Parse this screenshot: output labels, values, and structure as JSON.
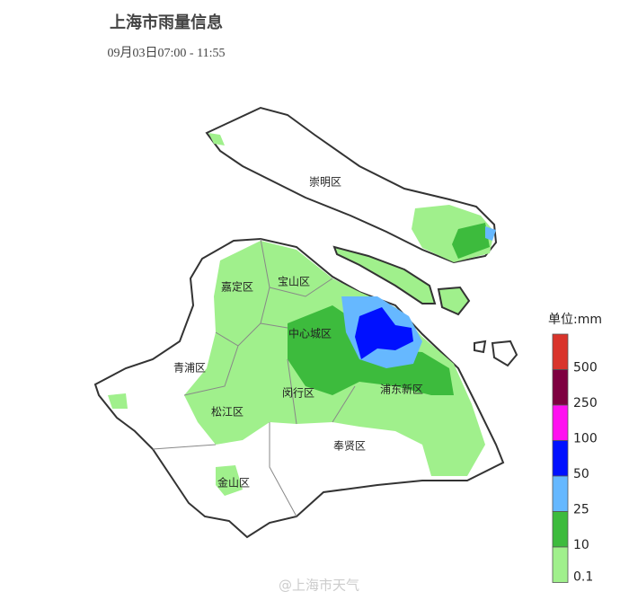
{
  "header": {
    "title": "上海市雨量信息",
    "subtitle": "09月03日07:00 - 11:55"
  },
  "districts": [
    {
      "label": "崇明区"
    },
    {
      "label": "宝山区"
    },
    {
      "label": "嘉定区"
    },
    {
      "label": "中心城区"
    },
    {
      "label": "青浦区"
    },
    {
      "label": "闵行区"
    },
    {
      "label": "浦东新区"
    },
    {
      "label": "松江区"
    },
    {
      "label": "奉贤区"
    },
    {
      "label": "金山区"
    }
  ],
  "legend": {
    "unit": "单位:mm",
    "levels": [
      {
        "label": "500",
        "color": "#d9342b"
      },
      {
        "label": "250",
        "color": "#7e0040"
      },
      {
        "label": "100",
        "color": "#ff10f0"
      },
      {
        "label": "50",
        "color": "#0010ff"
      },
      {
        "label": "25",
        "color": "#66b8ff"
      },
      {
        "label": "10",
        "color": "#3dbb3d"
      },
      {
        "label": "0.1",
        "color": "#a0f08c"
      }
    ]
  },
  "watermark": "@上海市天气"
}
